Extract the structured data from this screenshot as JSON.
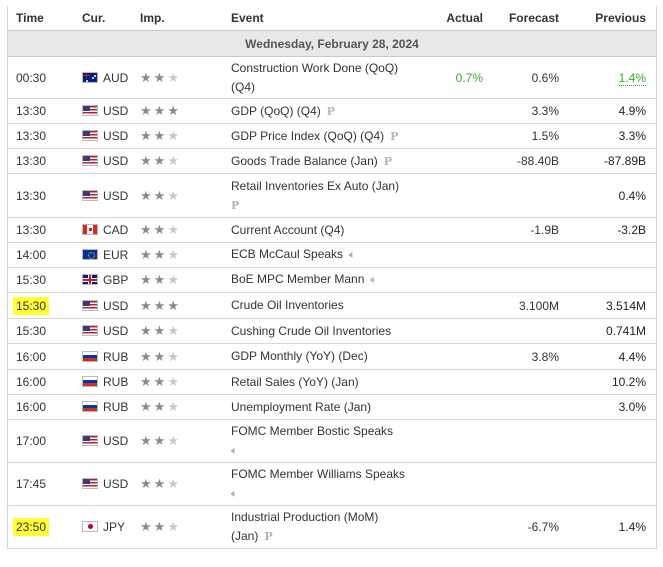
{
  "header": {
    "time": "Time",
    "cur": "Cur.",
    "imp": "Imp.",
    "event": "Event",
    "actual": "Actual",
    "forecast": "Forecast",
    "previous": "Previous"
  },
  "date_label": "Wednesday, February 28, 2024",
  "colors": {
    "actual_green": "#3aa832",
    "highlight": "#ffff33",
    "date_bar": "#e8e8e8"
  },
  "events": [
    {
      "time": "00:30",
      "cur": "AUD",
      "flag": "au-flag-icon",
      "stars": 2,
      "event_line1": "Construction Work Done (QoQ)",
      "event_line2": "(Q4)",
      "icon": "",
      "actual": "0.7%",
      "forecast": "0.6%",
      "previous": "1.4%",
      "highlight": false
    },
    {
      "time": "13:30",
      "cur": "USD",
      "flag": "us-flag-icon",
      "stars": 3,
      "event_line1": "GDP (QoQ) (Q4)",
      "event_line2": "",
      "icon": "preliminary-icon",
      "actual": "",
      "forecast": "3.3%",
      "previous": "4.9%",
      "highlight": false
    },
    {
      "time": "13:30",
      "cur": "USD",
      "flag": "us-flag-icon",
      "stars": 2,
      "event_line1": "GDP Price Index (QoQ) (Q4)",
      "event_line2": "",
      "icon": "preliminary-icon",
      "actual": "",
      "forecast": "1.5%",
      "previous": "3.3%",
      "highlight": false
    },
    {
      "time": "13:30",
      "cur": "USD",
      "flag": "us-flag-icon",
      "stars": 2,
      "event_line1": "Goods Trade Balance (Jan)",
      "event_line2": "",
      "icon": "preliminary-icon",
      "actual": "",
      "forecast": "-88.40B",
      "previous": "-87.89B",
      "highlight": false
    },
    {
      "time": "13:30",
      "cur": "USD",
      "flag": "us-flag-icon",
      "stars": 2,
      "event_line1": "Retail Inventories Ex Auto (Jan)",
      "event_line2": "",
      "icon": "preliminary-icon",
      "icon_newline": true,
      "actual": "",
      "forecast": "",
      "previous": "0.4%",
      "highlight": false
    },
    {
      "time": "13:30",
      "cur": "CAD",
      "flag": "ca-flag-icon",
      "stars": 2,
      "event_line1": "Current Account (Q4)",
      "event_line2": "",
      "icon": "",
      "actual": "",
      "forecast": "-1.9B",
      "previous": "-3.2B",
      "highlight": false
    },
    {
      "time": "14:00",
      "cur": "EUR",
      "flag": "eu-flag-icon",
      "stars": 2,
      "event_line1": "ECB McCaul Speaks",
      "event_line2": "",
      "icon": "speaker-icon",
      "actual": "",
      "forecast": "",
      "previous": "",
      "highlight": false
    },
    {
      "time": "15:30",
      "cur": "GBP",
      "flag": "gb-flag-icon",
      "stars": 2,
      "event_line1": "BoE MPC Member Mann",
      "event_line2": "",
      "icon": "speaker-icon",
      "actual": "",
      "forecast": "",
      "previous": "",
      "highlight": false
    },
    {
      "time": "15:30",
      "cur": "USD",
      "flag": "us-flag-icon",
      "stars": 3,
      "event_line1": "Crude Oil Inventories",
      "event_line2": "",
      "icon": "",
      "actual": "",
      "forecast": "3.100M",
      "previous": "3.514M",
      "highlight": true
    },
    {
      "time": "15:30",
      "cur": "USD",
      "flag": "us-flag-icon",
      "stars": 2,
      "event_line1": "Cushing Crude Oil Inventories",
      "event_line2": "",
      "icon": "",
      "actual": "",
      "forecast": "",
      "previous": "0.741M",
      "highlight": false
    },
    {
      "time": "16:00",
      "cur": "RUB",
      "flag": "ru-flag-icon",
      "stars": 2,
      "event_line1": "GDP Monthly (YoY) (Dec)",
      "event_line2": "",
      "icon": "",
      "actual": "",
      "forecast": "3.8%",
      "previous": "4.4%",
      "highlight": false
    },
    {
      "time": "16:00",
      "cur": "RUB",
      "flag": "ru-flag-icon",
      "stars": 2,
      "event_line1": "Retail Sales (YoY) (Jan)",
      "event_line2": "",
      "icon": "",
      "actual": "",
      "forecast": "",
      "previous": "10.2%",
      "highlight": false
    },
    {
      "time": "16:00",
      "cur": "RUB",
      "flag": "ru-flag-icon",
      "stars": 2,
      "event_line1": "Unemployment Rate (Jan)",
      "event_line2": "",
      "icon": "",
      "actual": "",
      "forecast": "",
      "previous": "3.0%",
      "highlight": false
    },
    {
      "time": "17:00",
      "cur": "USD",
      "flag": "us-flag-icon",
      "stars": 2,
      "event_line1": "FOMC Member Bostic Speaks",
      "event_line2": "",
      "icon": "speaker-icon",
      "icon_newline": true,
      "actual": "",
      "forecast": "",
      "previous": "",
      "highlight": false
    },
    {
      "time": "17:45",
      "cur": "USD",
      "flag": "us-flag-icon",
      "stars": 2,
      "event_line1": "FOMC Member Williams Speaks",
      "event_line2": "",
      "icon": "speaker-icon",
      "icon_newline": true,
      "actual": "",
      "forecast": "",
      "previous": "",
      "highlight": false
    },
    {
      "time": "23:50",
      "cur": "JPY",
      "flag": "jp-flag-icon",
      "stars": 2,
      "event_line1": "Industrial Production (MoM)",
      "event_line2": "(Jan)",
      "icon": "preliminary-icon",
      "actual": "",
      "forecast": "-6.7%",
      "previous": "1.4%",
      "highlight": true
    }
  ]
}
